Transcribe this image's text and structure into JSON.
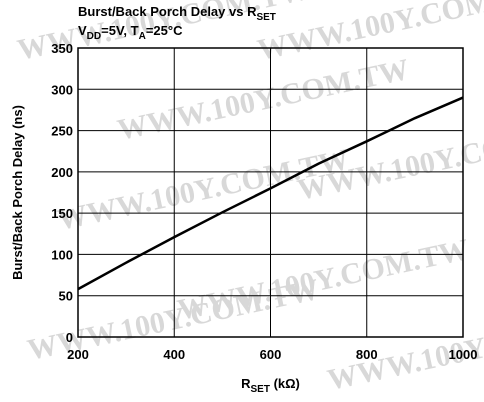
{
  "chart_data": {
    "type": "line",
    "title": [
      {
        "text": "Burst/Back Porch Delay vs R"
      },
      {
        "text": "SET",
        "subscript": true
      }
    ],
    "subtitle": [
      {
        "text": "V"
      },
      {
        "text": "DD",
        "subscript": true
      },
      {
        "text": "=5V, T"
      },
      {
        "text": "A",
        "subscript": true
      },
      {
        "text": "=25°C"
      }
    ],
    "x_label": [
      {
        "text": "R"
      },
      {
        "text": "SET",
        "subscript": true
      },
      {
        "text": " (kΩ)"
      }
    ],
    "y_label": [
      {
        "text": "Burst/Back Porch Delay (ns)"
      }
    ],
    "watermark": "WWW.100Y.COM.TW",
    "x": [
      200,
      300,
      400,
      500,
      600,
      700,
      800,
      900,
      1000
    ],
    "series": [
      {
        "name": "Delay",
        "color": "#000000",
        "values": [
          58,
          90,
          121,
          151,
          180,
          210,
          237,
          265,
          290
        ]
      }
    ],
    "xlim": [
      200,
      1000
    ],
    "xticks": [
      200,
      400,
      600,
      800,
      1000
    ],
    "ylim": [
      0,
      350
    ],
    "yticks": [
      0,
      50,
      100,
      150,
      200,
      250,
      300,
      350
    ],
    "grid": true
  }
}
